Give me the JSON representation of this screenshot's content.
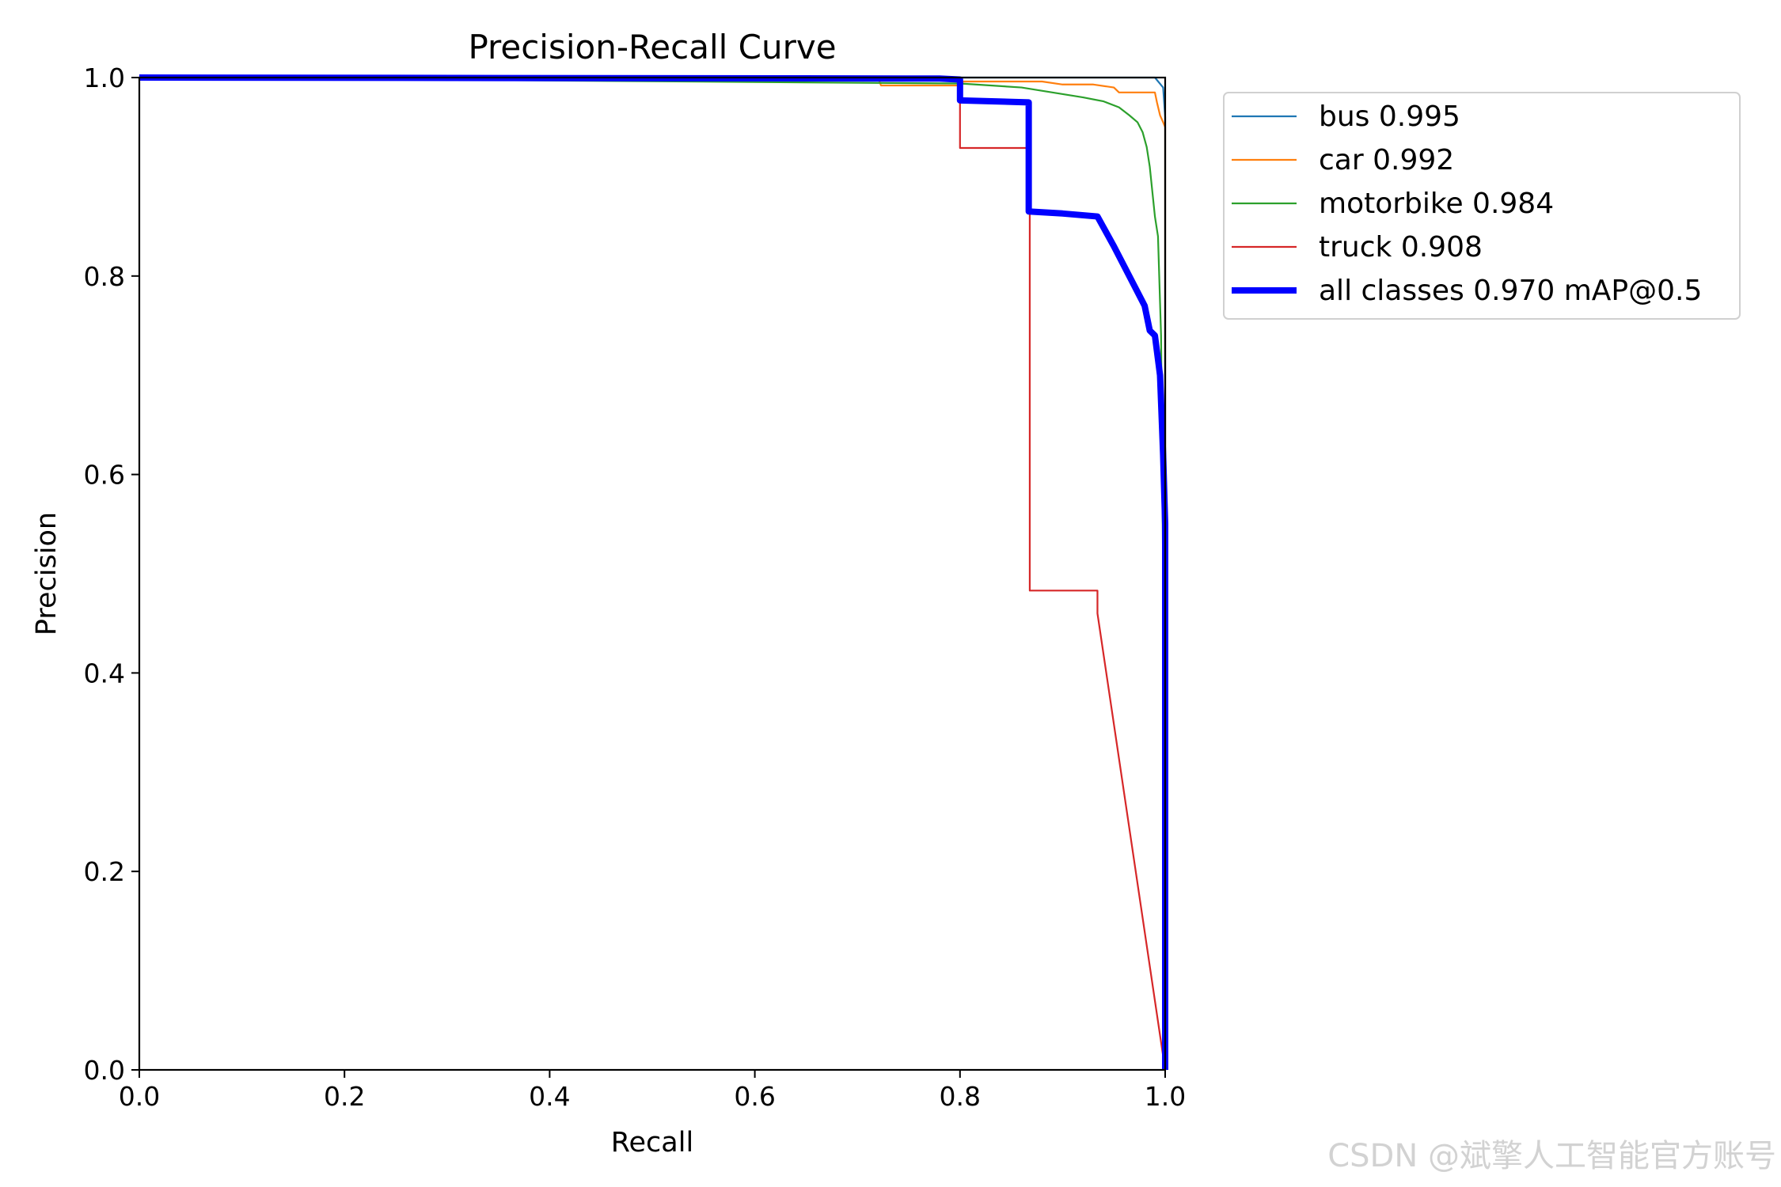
{
  "chart_data": {
    "type": "line",
    "title": "Precision-Recall Curve",
    "xlabel": "Recall",
    "ylabel": "Precision",
    "xlim": [
      0,
      1
    ],
    "ylim": [
      0,
      1
    ],
    "xticks": [
      "0.0",
      "0.2",
      "0.4",
      "0.6",
      "0.8",
      "1.0"
    ],
    "yticks": [
      "0.0",
      "0.2",
      "0.4",
      "0.6",
      "0.8",
      "1.0"
    ],
    "grid": false,
    "legend_position": "outside-top-right",
    "series": [
      {
        "name": "bus 0.995",
        "color": "#1f77b4",
        "x": [
          0,
          0.55,
          0.99,
          0.998,
          1.0,
          1.0
        ],
        "y": [
          1.0,
          1.0,
          1.0,
          0.99,
          0.96,
          0.0
        ]
      },
      {
        "name": "car 0.992",
        "color": "#ff7f0e",
        "x": [
          0,
          0.72,
          0.723,
          0.8,
          0.803,
          0.88,
          0.9,
          0.93,
          0.95,
          0.955,
          0.99,
          0.992,
          0.995,
          0.998,
          1.0,
          1.0
        ],
        "y": [
          1.0,
          1.0,
          0.992,
          0.992,
          0.996,
          0.996,
          0.993,
          0.993,
          0.99,
          0.985,
          0.985,
          0.975,
          0.962,
          0.955,
          0.95,
          0.0
        ]
      },
      {
        "name": "motorbike 0.984",
        "color": "#2ca02c",
        "x": [
          0,
          0.8,
          0.86,
          0.89,
          0.92,
          0.94,
          0.955,
          0.965,
          0.973,
          0.978,
          0.982,
          0.985,
          0.988,
          0.99,
          0.993,
          0.996,
          0.998,
          1.0,
          1.0
        ],
        "y": [
          1.0,
          0.994,
          0.99,
          0.985,
          0.98,
          0.976,
          0.97,
          0.962,
          0.955,
          0.945,
          0.93,
          0.91,
          0.88,
          0.86,
          0.84,
          0.74,
          0.5,
          0.2,
          0.0
        ]
      },
      {
        "name": "truck 0.908",
        "color": "#d62728",
        "x": [
          0,
          0.8,
          0.8,
          0.867,
          0.867,
          0.868,
          0.868,
          0.934,
          0.934,
          1.0
        ],
        "y": [
          1.0,
          1.0,
          0.929,
          0.929,
          0.866,
          0.866,
          0.483,
          0.483,
          0.46,
          0.0
        ]
      },
      {
        "name": "all classes 0.970 mAP@0.5",
        "color": "#0000ff",
        "x": [
          0,
          0.78,
          0.8,
          0.8,
          0.867,
          0.867,
          0.9,
          0.934,
          0.95,
          0.97,
          0.98,
          0.985,
          0.99,
          0.995,
          0.998,
          1.0,
          1.0
        ],
        "y": [
          1.0,
          0.999,
          0.998,
          0.977,
          0.975,
          0.865,
          0.863,
          0.86,
          0.83,
          0.79,
          0.77,
          0.745,
          0.74,
          0.7,
          0.62,
          0.55,
          0.0
        ]
      }
    ]
  },
  "watermark": "CSDN @斌擎人工智能官方账号"
}
